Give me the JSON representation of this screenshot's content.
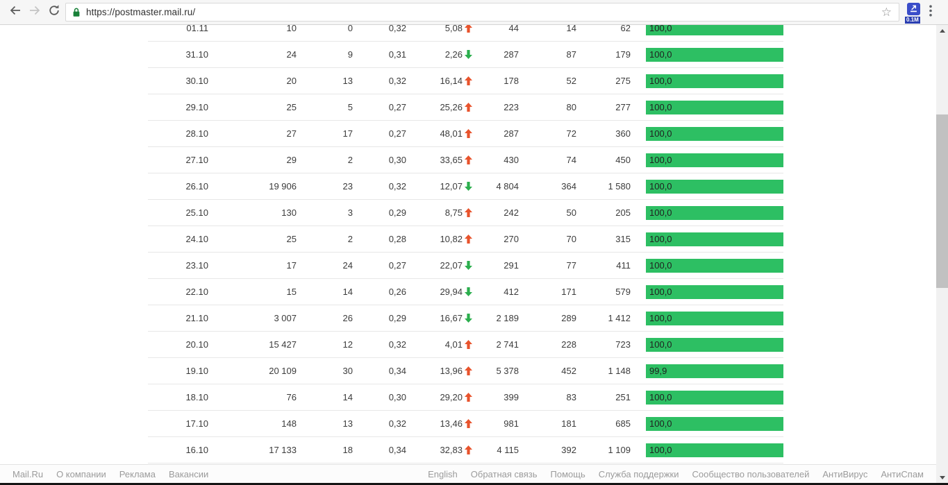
{
  "browser": {
    "url": "https://postmaster.mail.ru/",
    "extension_badge": "0.1M"
  },
  "colors": {
    "bar_green": "#2dbf63",
    "trend_up": "#e8532c",
    "trend_down": "#2bae4d",
    "lock_green": "#188038",
    "extension_blue": "#3a4dc9"
  },
  "table": {
    "rows": [
      {
        "date": "01.11",
        "c2": "10",
        "c3": "0",
        "c4": "0,32",
        "c5": "5,08",
        "trend": "up",
        "c6": "44",
        "c7": "14",
        "c8": "62",
        "bar": "100,0",
        "bar_pct": 100
      },
      {
        "date": "31.10",
        "c2": "24",
        "c3": "9",
        "c4": "0,31",
        "c5": "2,26",
        "trend": "down",
        "c6": "287",
        "c7": "87",
        "c8": "179",
        "bar": "100,0",
        "bar_pct": 100
      },
      {
        "date": "30.10",
        "c2": "20",
        "c3": "13",
        "c4": "0,32",
        "c5": "16,14",
        "trend": "up",
        "c6": "178",
        "c7": "52",
        "c8": "275",
        "bar": "100,0",
        "bar_pct": 100
      },
      {
        "date": "29.10",
        "c2": "25",
        "c3": "5",
        "c4": "0,27",
        "c5": "25,26",
        "trend": "up",
        "c6": "223",
        "c7": "80",
        "c8": "277",
        "bar": "100,0",
        "bar_pct": 100
      },
      {
        "date": "28.10",
        "c2": "27",
        "c3": "17",
        "c4": "0,27",
        "c5": "48,01",
        "trend": "up",
        "c6": "287",
        "c7": "72",
        "c8": "360",
        "bar": "100,0",
        "bar_pct": 100
      },
      {
        "date": "27.10",
        "c2": "29",
        "c3": "2",
        "c4": "0,30",
        "c5": "33,65",
        "trend": "up",
        "c6": "430",
        "c7": "74",
        "c8": "450",
        "bar": "100,0",
        "bar_pct": 100
      },
      {
        "date": "26.10",
        "c2": "19 906",
        "c3": "23",
        "c4": "0,32",
        "c5": "12,07",
        "trend": "down",
        "c6": "4 804",
        "c7": "364",
        "c8": "1 580",
        "bar": "100,0",
        "bar_pct": 100
      },
      {
        "date": "25.10",
        "c2": "130",
        "c3": "3",
        "c4": "0,29",
        "c5": "8,75",
        "trend": "up",
        "c6": "242",
        "c7": "50",
        "c8": "205",
        "bar": "100,0",
        "bar_pct": 100
      },
      {
        "date": "24.10",
        "c2": "25",
        "c3": "2",
        "c4": "0,28",
        "c5": "10,82",
        "trend": "up",
        "c6": "270",
        "c7": "70",
        "c8": "315",
        "bar": "100,0",
        "bar_pct": 100
      },
      {
        "date": "23.10",
        "c2": "17",
        "c3": "24",
        "c4": "0,27",
        "c5": "22,07",
        "trend": "down",
        "c6": "291",
        "c7": "77",
        "c8": "411",
        "bar": "100,0",
        "bar_pct": 100
      },
      {
        "date": "22.10",
        "c2": "15",
        "c3": "14",
        "c4": "0,26",
        "c5": "29,94",
        "trend": "down",
        "c6": "412",
        "c7": "171",
        "c8": "579",
        "bar": "100,0",
        "bar_pct": 100
      },
      {
        "date": "21.10",
        "c2": "3 007",
        "c3": "26",
        "c4": "0,29",
        "c5": "16,67",
        "trend": "down",
        "c6": "2 189",
        "c7": "289",
        "c8": "1 412",
        "bar": "100,0",
        "bar_pct": 100
      },
      {
        "date": "20.10",
        "c2": "15 427",
        "c3": "12",
        "c4": "0,32",
        "c5": "4,01",
        "trend": "up",
        "c6": "2 741",
        "c7": "228",
        "c8": "723",
        "bar": "100,0",
        "bar_pct": 100
      },
      {
        "date": "19.10",
        "c2": "20 109",
        "c3": "30",
        "c4": "0,34",
        "c5": "13,96",
        "trend": "up",
        "c6": "5 378",
        "c7": "452",
        "c8": "1 148",
        "bar": "99,9",
        "bar_pct": 99.9
      },
      {
        "date": "18.10",
        "c2": "76",
        "c3": "14",
        "c4": "0,30",
        "c5": "29,20",
        "trend": "up",
        "c6": "399",
        "c7": "83",
        "c8": "251",
        "bar": "100,0",
        "bar_pct": 100
      },
      {
        "date": "17.10",
        "c2": "148",
        "c3": "13",
        "c4": "0,32",
        "c5": "13,46",
        "trend": "up",
        "c6": "981",
        "c7": "181",
        "c8": "685",
        "bar": "100,0",
        "bar_pct": 100
      },
      {
        "date": "16.10",
        "c2": "17 133",
        "c3": "18",
        "c4": "0,34",
        "c5": "32,83",
        "trend": "up",
        "c6": "4 115",
        "c7": "392",
        "c8": "1 109",
        "bar": "100,0",
        "bar_pct": 100
      }
    ]
  },
  "footer": {
    "left_links": [
      "Mail.Ru",
      "О компании",
      "Реклама",
      "Вакансии"
    ],
    "right_links": [
      "English",
      "Обратная связь",
      "Помощь",
      "Служба поддержки",
      "Сообщество пользователей",
      "АнтиВирус",
      "АнтиСпам"
    ]
  }
}
